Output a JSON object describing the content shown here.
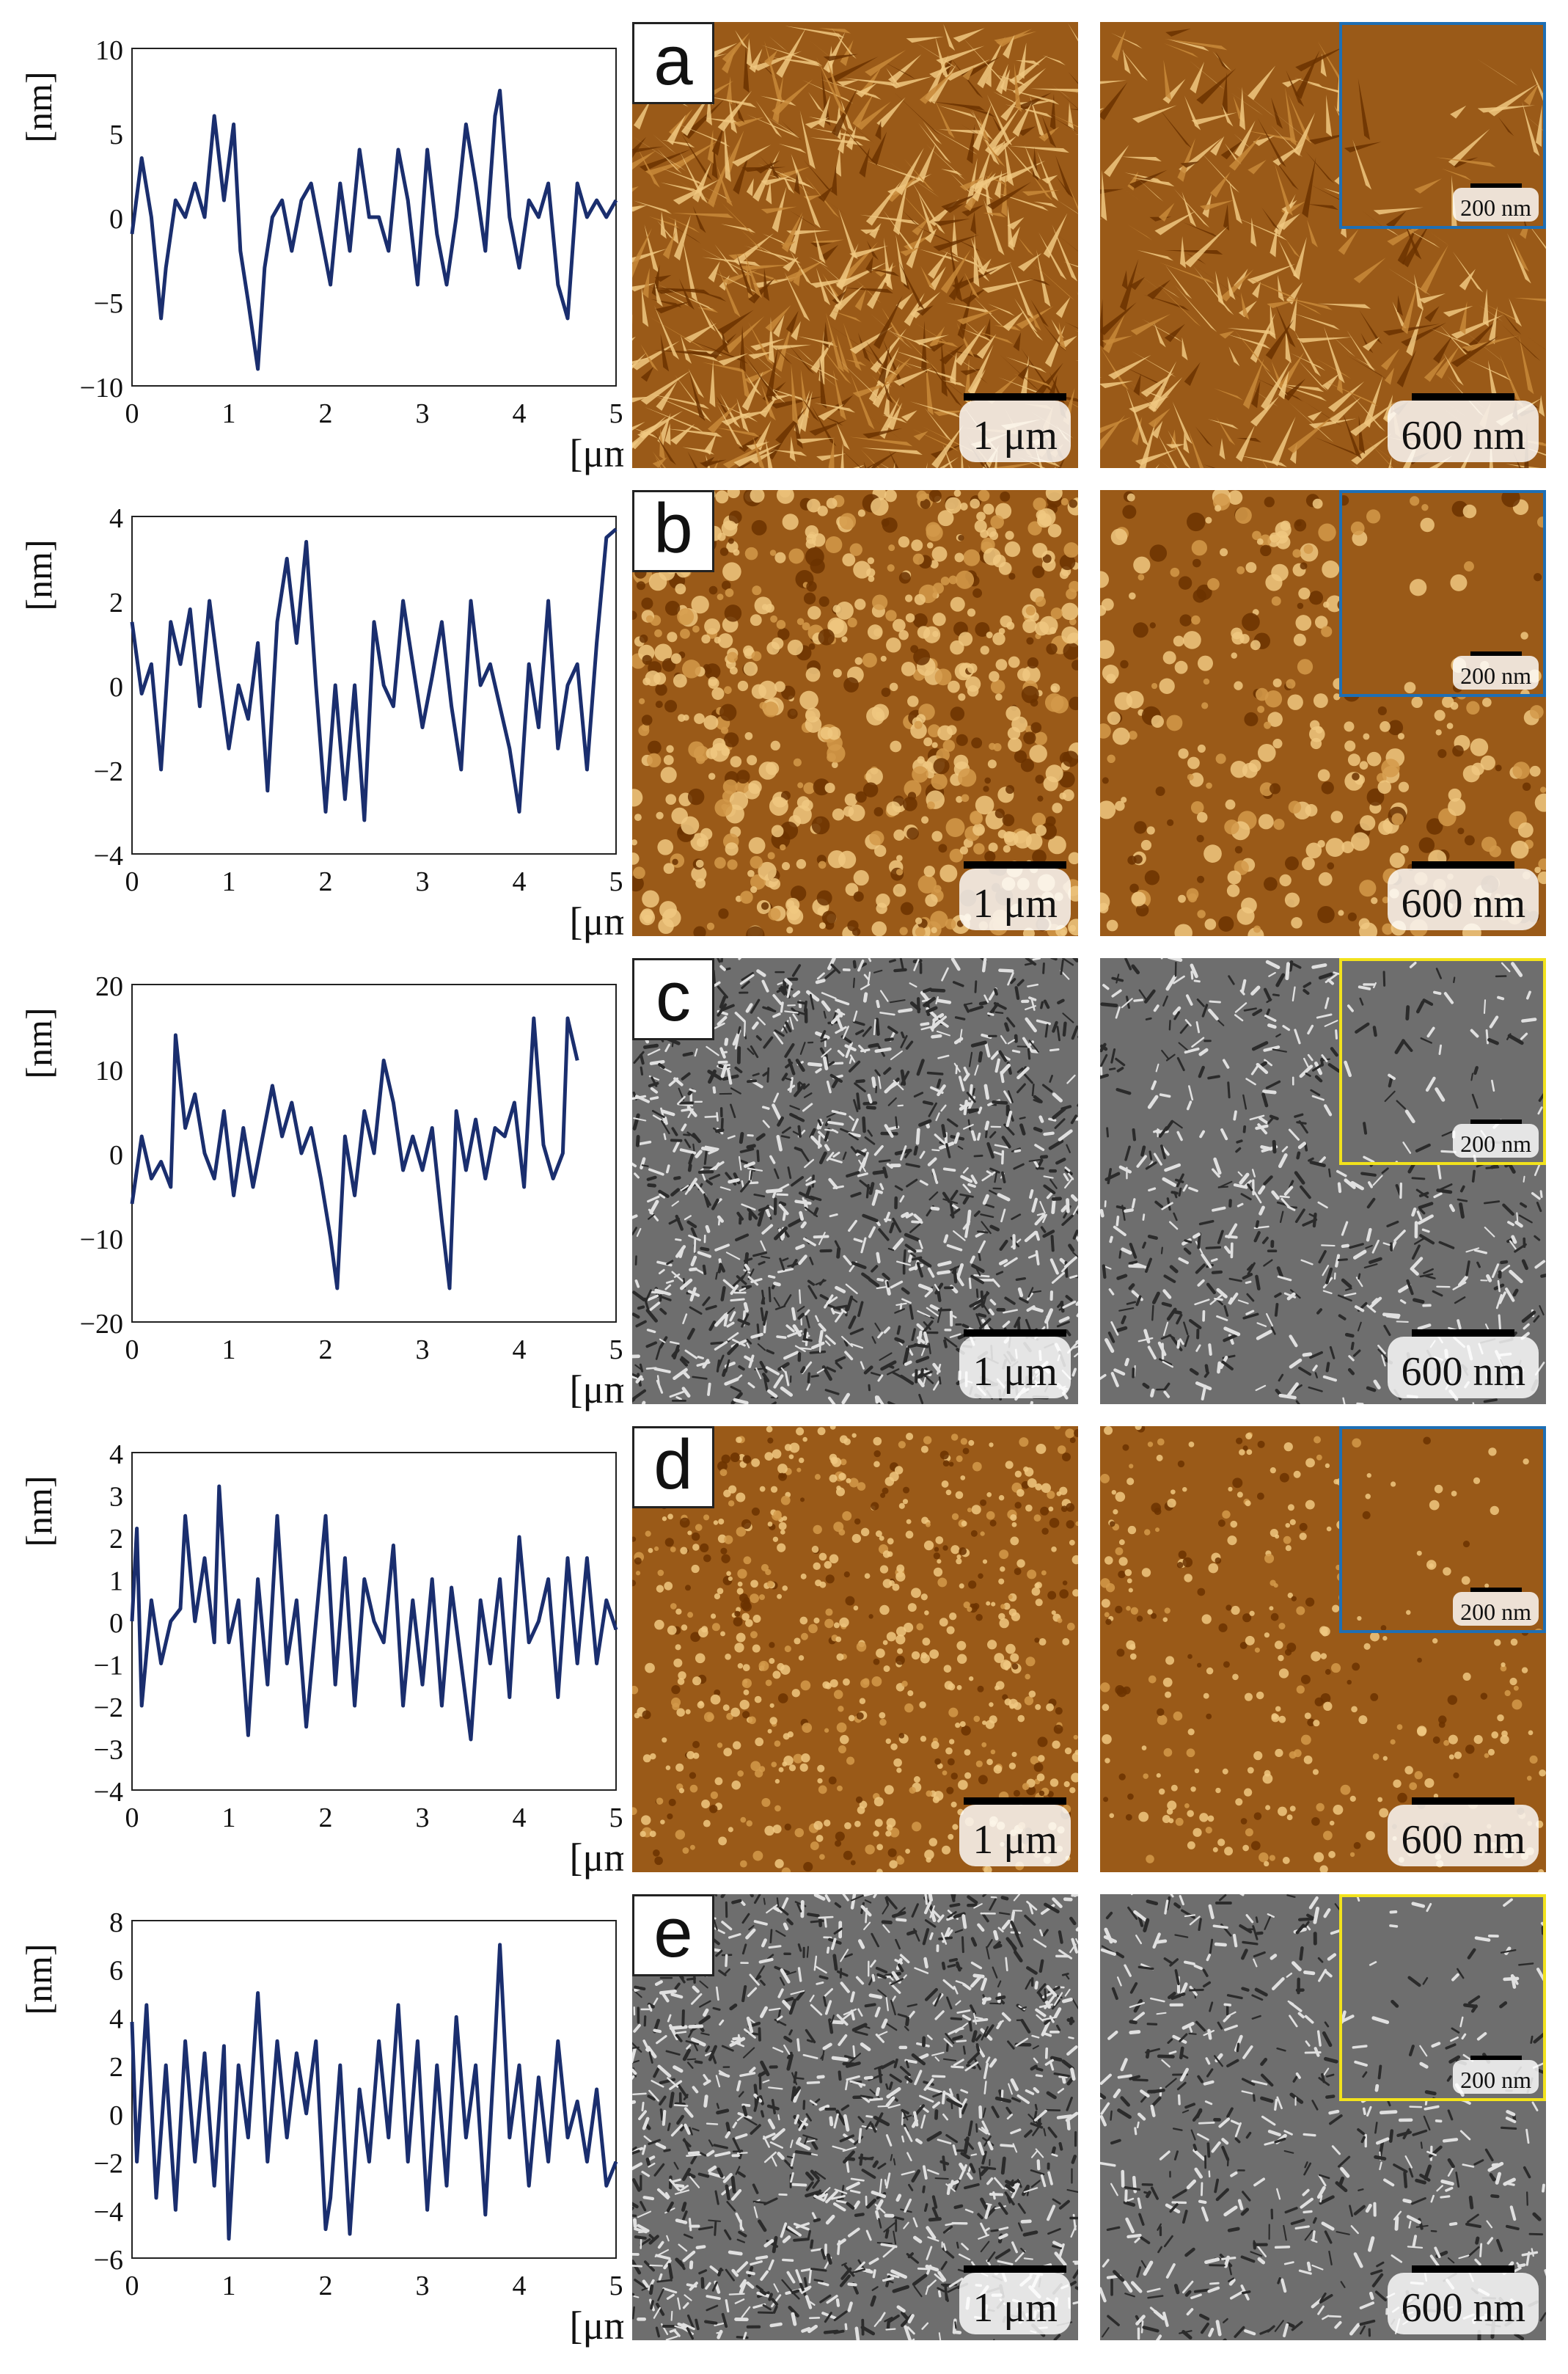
{
  "colors": {
    "line": "#1a2e6e",
    "afm_dark": "#6b3300",
    "afm_light": "#f0c880",
    "sem_dark": "#2b2b2b",
    "sem_light": "#e0e0e0",
    "inset_blue": "#1e6fb5",
    "inset_yellow": "#f2e21c"
  },
  "chart_data": [
    {
      "type": "line",
      "panel": "a",
      "xlabel": "[μm]",
      "ylabel": "[nm]",
      "xlim": [
        0,
        5
      ],
      "ylim": [
        -10,
        10
      ],
      "xticks": [
        0,
        1,
        2,
        3,
        4,
        5
      ],
      "yticks": [
        -10,
        -5,
        0,
        5,
        10
      ],
      "yticklabels": [
        "−10",
        "−5",
        "0",
        "5",
        "10"
      ],
      "x": [
        0,
        0.1,
        0.2,
        0.3,
        0.35,
        0.45,
        0.55,
        0.65,
        0.75,
        0.85,
        0.95,
        1.05,
        1.12,
        1.2,
        1.3,
        1.37,
        1.45,
        1.55,
        1.65,
        1.75,
        1.85,
        1.95,
        2.05,
        2.15,
        2.25,
        2.35,
        2.45,
        2.55,
        2.65,
        2.75,
        2.85,
        2.95,
        3.05,
        3.15,
        3.25,
        3.35,
        3.45,
        3.55,
        3.65,
        3.75,
        3.8,
        3.9,
        4.0,
        4.1,
        4.2,
        4.3,
        4.4,
        4.5,
        4.6,
        4.7,
        4.8,
        4.9,
        5.0
      ],
      "y": [
        -1,
        3.5,
        0,
        -6,
        -3,
        1,
        0,
        2,
        0,
        6,
        1,
        5.5,
        -2,
        -5,
        -9,
        -3,
        0,
        1,
        -2,
        1,
        2,
        -1,
        -4,
        2,
        -2,
        4,
        0,
        0,
        -2,
        4,
        1,
        -4,
        4,
        -1,
        -4,
        0,
        5.5,
        2,
        -2,
        6,
        7.5,
        0,
        -3,
        1,
        0,
        2,
        -4,
        -6,
        2,
        0,
        1,
        0,
        1
      ]
    },
    {
      "type": "line",
      "panel": "b",
      "xlabel": "[μm]",
      "ylabel": "[nm]",
      "xlim": [
        0,
        5
      ],
      "ylim": [
        -4,
        4
      ],
      "xticks": [
        0,
        1,
        2,
        3,
        4,
        5
      ],
      "yticks": [
        -4,
        -2,
        0,
        2,
        4
      ],
      "yticklabels": [
        "−4",
        "−2",
        "0",
        "2",
        "4"
      ],
      "x": [
        0,
        0.1,
        0.2,
        0.3,
        0.4,
        0.5,
        0.6,
        0.7,
        0.8,
        0.9,
        1.0,
        1.1,
        1.2,
        1.3,
        1.4,
        1.5,
        1.6,
        1.7,
        1.8,
        1.9,
        2.0,
        2.1,
        2.2,
        2.3,
        2.4,
        2.5,
        2.6,
        2.7,
        2.8,
        2.9,
        3.0,
        3.1,
        3.2,
        3.3,
        3.4,
        3.5,
        3.6,
        3.7,
        3.8,
        3.9,
        4.0,
        4.1,
        4.2,
        4.3,
        4.4,
        4.5,
        4.6,
        4.7,
        4.8,
        4.9,
        5.0
      ],
      "y": [
        1.5,
        -0.2,
        0.5,
        -2,
        1.5,
        0.5,
        1.8,
        -0.5,
        2,
        0.2,
        -1.5,
        0,
        -0.8,
        1,
        -2.5,
        1.5,
        3,
        1,
        3.4,
        0,
        -3,
        0,
        -2.7,
        0,
        -3.2,
        1.5,
        0,
        -0.5,
        2,
        0.5,
        -1,
        0.2,
        1.5,
        -0.5,
        -2,
        2,
        0,
        0.5,
        -0.5,
        -1.5,
        -3,
        0.5,
        -1,
        2,
        -1.5,
        0,
        0.5,
        -2,
        1,
        3.5,
        3.7
      ]
    },
    {
      "type": "line",
      "panel": "c",
      "xlabel": "[μm]",
      "ylabel": "[nm]",
      "xlim": [
        0,
        5
      ],
      "ylim": [
        -20,
        20
      ],
      "xticks": [
        0,
        1,
        2,
        3,
        4,
        5
      ],
      "yticks": [
        -20,
        -10,
        0,
        10,
        20
      ],
      "yticklabels": [
        "−20",
        "−10",
        "0",
        "10",
        "20"
      ],
      "x": [
        0,
        0.1,
        0.2,
        0.3,
        0.4,
        0.45,
        0.55,
        0.65,
        0.75,
        0.85,
        0.95,
        1.05,
        1.15,
        1.25,
        1.35,
        1.45,
        1.55,
        1.65,
        1.75,
        1.85,
        1.95,
        2.05,
        2.12,
        2.2,
        2.3,
        2.4,
        2.5,
        2.6,
        2.7,
        2.8,
        2.9,
        3.0,
        3.1,
        3.2,
        3.28,
        3.35,
        3.45,
        3.55,
        3.65,
        3.75,
        3.85,
        3.95,
        4.05,
        4.15,
        4.25,
        4.35,
        4.45,
        4.5,
        4.6
      ],
      "y": [
        -6,
        2,
        -3,
        -1,
        -4,
        14,
        3,
        7,
        0,
        -3,
        5,
        -5,
        3,
        -4,
        2,
        8,
        2,
        6,
        0,
        3,
        -3,
        -10,
        -16,
        2,
        -5,
        5,
        0,
        11,
        6,
        -2,
        2,
        -2,
        3,
        -8,
        -16,
        5,
        -2,
        4,
        -3,
        3,
        2,
        6,
        -4,
        16,
        1,
        -3,
        0,
        16,
        11
      ]
    },
    {
      "type": "line",
      "panel": "d",
      "xlabel": "[μm]",
      "ylabel": "[nm]",
      "xlim": [
        0,
        5
      ],
      "ylim": [
        -4,
        4
      ],
      "xticks": [
        0,
        1,
        2,
        3,
        4,
        5
      ],
      "yticks": [
        -4,
        -3,
        -2,
        -1,
        0,
        1,
        2,
        3,
        4
      ],
      "yticklabels": [
        "−4",
        "−3",
        "−2",
        "−1",
        "0",
        "1",
        "2",
        "3",
        "4"
      ],
      "x": [
        0,
        0.05,
        0.1,
        0.2,
        0.3,
        0.4,
        0.5,
        0.55,
        0.65,
        0.75,
        0.85,
        0.9,
        1.0,
        1.1,
        1.2,
        1.3,
        1.4,
        1.5,
        1.6,
        1.7,
        1.8,
        1.9,
        2.0,
        2.1,
        2.2,
        2.3,
        2.4,
        2.5,
        2.6,
        2.7,
        2.8,
        2.9,
        3.0,
        3.1,
        3.2,
        3.3,
        3.4,
        3.5,
        3.6,
        3.7,
        3.8,
        3.9,
        4.0,
        4.1,
        4.2,
        4.3,
        4.4,
        4.5,
        4.6,
        4.7,
        4.8,
        4.9,
        5.0
      ],
      "y": [
        0,
        2.2,
        -2,
        0.5,
        -1,
        0,
        0.3,
        2.5,
        0,
        1.5,
        -0.5,
        3.2,
        -0.5,
        0.5,
        -2.7,
        1,
        -1.5,
        2.5,
        -1,
        0.5,
        -2.5,
        0,
        2.5,
        -1.5,
        1.5,
        -2,
        1,
        0,
        -0.5,
        1.8,
        -2,
        0.5,
        -1.5,
        1,
        -2,
        0.8,
        -1,
        -2.8,
        0.5,
        -1,
        1,
        -1.8,
        2,
        -0.5,
        0,
        1,
        -1.8,
        1.5,
        -1,
        1.5,
        -1,
        0.5,
        -0.2
      ]
    },
    {
      "type": "line",
      "panel": "e",
      "xlabel": "[μm]",
      "ylabel": "[nm]",
      "xlim": [
        0,
        5
      ],
      "ylim": [
        -6,
        8
      ],
      "xticks": [
        0,
        1,
        2,
        3,
        4,
        5
      ],
      "yticks": [
        -6,
        -4,
        -2,
        0,
        2,
        4,
        6,
        8
      ],
      "yticklabels": [
        "−6",
        "−4",
        "−2",
        "0",
        "2",
        "4",
        "6",
        "8"
      ],
      "x": [
        0,
        0.05,
        0.15,
        0.25,
        0.35,
        0.45,
        0.55,
        0.65,
        0.75,
        0.85,
        0.95,
        1.0,
        1.1,
        1.2,
        1.3,
        1.4,
        1.5,
        1.6,
        1.7,
        1.8,
        1.9,
        2.0,
        2.05,
        2.15,
        2.25,
        2.35,
        2.45,
        2.55,
        2.65,
        2.75,
        2.85,
        2.95,
        3.05,
        3.15,
        3.25,
        3.35,
        3.45,
        3.55,
        3.65,
        3.75,
        3.8,
        3.9,
        4.0,
        4.1,
        4.2,
        4.3,
        4.4,
        4.5,
        4.6,
        4.7,
        4.8,
        4.9,
        5.0
      ],
      "y": [
        3.8,
        -2,
        4.5,
        -3.5,
        2,
        -4,
        3,
        -2,
        2.5,
        -3,
        2.8,
        -5.2,
        2,
        -1,
        5,
        -2,
        3,
        -1,
        2.5,
        0,
        3,
        -4.8,
        -3.5,
        2,
        -5,
        1,
        -2,
        3,
        -1,
        4.5,
        -2,
        3,
        -4,
        2,
        -3,
        4,
        -1,
        2,
        -4.2,
        3,
        7,
        -1,
        2,
        -3,
        1.5,
        -2,
        3,
        -1,
        0.5,
        -2,
        1,
        -3,
        -2
      ]
    }
  ],
  "panels": [
    {
      "letter": "a",
      "scale_large": "1 μm",
      "scale_zoom": "600 nm",
      "inset_scale": "200 nm",
      "inset_color": "blue",
      "kind": "afm-plates"
    },
    {
      "letter": "b",
      "scale_large": "1 μm",
      "scale_zoom": "600 nm",
      "inset_scale": "200 nm",
      "inset_color": "blue",
      "kind": "afm-grains"
    },
    {
      "letter": "c",
      "scale_large": "1 μm",
      "scale_zoom": "600 nm",
      "inset_scale": "200 nm",
      "inset_color": "yellow",
      "kind": "sem"
    },
    {
      "letter": "d",
      "scale_large": "1 μm",
      "scale_zoom": "600 nm",
      "inset_scale": "200 nm",
      "inset_color": "blue",
      "kind": "afm-dots"
    },
    {
      "letter": "e",
      "scale_large": "1 μm",
      "scale_zoom": "600 nm",
      "inset_scale": "200 nm",
      "inset_color": "yellow",
      "kind": "sem"
    }
  ]
}
